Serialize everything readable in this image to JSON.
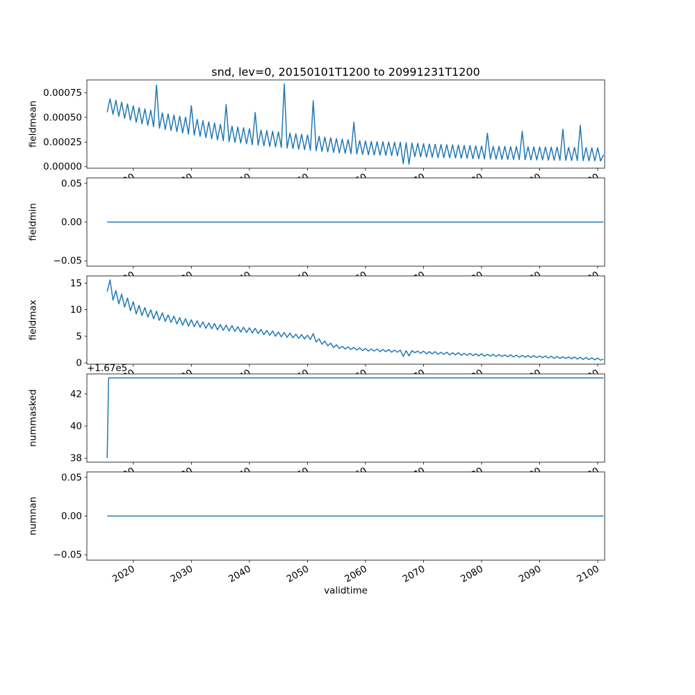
{
  "figure": {
    "title": "snd, lev=0, 20150101T1200 to 20991231T1200",
    "xlabel": "validtime",
    "line_color": "#1f77b4",
    "background": "#ffffff"
  },
  "x_axis": {
    "label": "validtime",
    "min": 2012,
    "max": 2101.2,
    "ticks": [
      2020,
      2030,
      2040,
      2050,
      2060,
      2070,
      2080,
      2090,
      2100
    ],
    "tick_labels": [
      "2020",
      "2030",
      "2040",
      "2050",
      "2060",
      "2070",
      "2080",
      "2090",
      "2100"
    ]
  },
  "chart_data": [
    {
      "type": "line",
      "name": "fieldmean",
      "ylabel": "fieldmean",
      "ylim": [
        -1.6e-05,
        0.000881
      ],
      "yticks": [
        0,
        0.00025,
        0.0005,
        0.00075
      ],
      "ytick_labels": [
        "0.00000",
        "0.00025",
        "0.00050",
        "0.00075"
      ],
      "x_start": 2015.5,
      "x_step": 0.5,
      "value_scale": 0.0001,
      "values": [
        5.52,
        6.9,
        5.31,
        6.73,
        5.11,
        6.55,
        4.91,
        6.37,
        4.71,
        6.19,
        4.51,
        6.0,
        4.35,
        5.87,
        4.2,
        5.73,
        4.05,
        8.3,
        3.9,
        5.46,
        3.79,
        5.38,
        3.67,
        5.25,
        3.55,
        5.14,
        3.42,
        5.03,
        3.3,
        6.2,
        3.2,
        4.81,
        3.07,
        4.68,
        2.95,
        4.55,
        2.84,
        4.43,
        2.72,
        4.29,
        2.63,
        6.3,
        2.54,
        4.11,
        2.46,
        4.03,
        2.39,
        3.95,
        2.31,
        3.86,
        2.23,
        5.5,
        2.17,
        3.72,
        2.11,
        3.66,
        2.05,
        3.6,
        2.0,
        3.54,
        1.94,
        8.4,
        1.88,
        3.42,
        1.83,
        3.35,
        1.77,
        3.29,
        1.72,
        3.22,
        1.66,
        6.7,
        1.61,
        3.08,
        1.55,
        3.01,
        1.5,
        2.94,
        1.44,
        2.86,
        1.39,
        2.79,
        1.35,
        2.75,
        1.31,
        4.5,
        1.27,
        2.65,
        1.24,
        2.61,
        1.2,
        2.56,
        1.18,
        2.54,
        1.16,
        2.53,
        1.14,
        2.51,
        1.12,
        2.49,
        1.1,
        2.48,
        0.3,
        2.44,
        0.25,
        2.4,
        1.02,
        2.37,
        0.99,
        2.33,
        0.96,
        2.3,
        0.94,
        2.27,
        0.92,
        2.25,
        0.91,
        2.23,
        0.89,
        2.21,
        0.87,
        2.19,
        0.85,
        2.16,
        0.84,
        2.14,
        0.81,
        2.12,
        0.8,
        2.09,
        0.78,
        3.4,
        0.77,
        2.06,
        0.75,
        2.06,
        0.74,
        2.05,
        0.73,
        2.04,
        0.72,
        2.04,
        0.71,
        3.6,
        0.7,
        2.02,
        0.69,
        2.01,
        0.68,
        2.0,
        0.67,
        2.0,
        0.66,
        1.99,
        0.65,
        1.98,
        0.64,
        3.8,
        0.63,
        1.96,
        0.62,
        1.95,
        0.61,
        4.2,
        0.6,
        1.93,
        0.59,
        1.92,
        0.58,
        1.91,
        0.57,
        1.2
      ]
    },
    {
      "type": "line",
      "name": "fieldmin",
      "ylabel": "fieldmin",
      "ylim": [
        -0.057,
        0.057
      ],
      "yticks": [
        -0.05,
        0,
        0.05
      ],
      "ytick_labels": [
        "−0.05",
        "0.00",
        "0.05"
      ],
      "x": [
        2015.5,
        2101.0
      ],
      "values": [
        0,
        0
      ]
    },
    {
      "type": "line",
      "name": "fieldmax",
      "ylabel": "fieldmax",
      "ylim": [
        -0.255,
        16.355
      ],
      "yticks": [
        0,
        5,
        10,
        15
      ],
      "ytick_labels": [
        "0",
        "5",
        "10",
        "15"
      ],
      "x_start": 2015.5,
      "x_step": 0.5,
      "value_scale": 1,
      "values": [
        13.4,
        15.6,
        11.8,
        13.6,
        11.1,
        12.9,
        10.5,
        12.2,
        9.8,
        11.5,
        9.2,
        10.8,
        8.9,
        10.4,
        8.6,
        10.0,
        8.3,
        9.7,
        8.0,
        9.4,
        7.8,
        9.0,
        7.6,
        8.8,
        7.3,
        8.5,
        7.1,
        8.3,
        6.9,
        8.1,
        6.8,
        7.9,
        6.7,
        7.7,
        6.5,
        7.5,
        6.4,
        7.4,
        6.2,
        7.2,
        6.1,
        7.1,
        6.0,
        7.0,
        5.9,
        6.8,
        5.8,
        6.7,
        5.7,
        6.6,
        5.6,
        6.5,
        5.5,
        6.3,
        5.3,
        6.1,
        5.2,
        6.0,
        5.0,
        5.8,
        4.9,
        5.7,
        4.8,
        5.6,
        4.7,
        5.4,
        4.6,
        5.3,
        4.5,
        5.2,
        4.4,
        5.5,
        3.9,
        4.5,
        3.5,
        4.1,
        3.2,
        3.7,
        2.9,
        3.4,
        2.7,
        3.1,
        2.6,
        3.0,
        2.5,
        2.9,
        2.4,
        2.8,
        2.3,
        2.7,
        2.2,
        2.6,
        2.2,
        2.6,
        2.1,
        2.5,
        2.1,
        2.5,
        2.0,
        2.4,
        2.0,
        2.4,
        1.2,
        2.3,
        1.3,
        2.3,
        1.9,
        2.2,
        1.8,
        2.2,
        1.7,
        2.1,
        1.7,
        2.1,
        1.6,
        2.0,
        1.6,
        2.0,
        1.5,
        1.9,
        1.5,
        1.9,
        1.4,
        1.8,
        1.4,
        1.8,
        1.35,
        1.7,
        1.3,
        1.7,
        1.25,
        1.6,
        1.25,
        1.6,
        1.2,
        1.55,
        1.2,
        1.5,
        1.15,
        1.5,
        1.1,
        1.45,
        1.05,
        1.4,
        1.05,
        1.35,
        1.0,
        1.35,
        1.0,
        1.3,
        0.95,
        1.3,
        0.9,
        1.25,
        0.85,
        1.2,
        0.85,
        1.15,
        0.8,
        1.1,
        0.75,
        1.1,
        0.7,
        1.05,
        0.65,
        1.0,
        0.6,
        0.95,
        0.55,
        0.9,
        0.5,
        0.7
      ]
    },
    {
      "type": "line",
      "name": "nummasked",
      "ylabel": "nummasked",
      "offset_text": "+1.67e5",
      "ylim": [
        167037.75,
        167043.25
      ],
      "yticks": [
        167038,
        167040,
        167042
      ],
      "ytick_labels": [
        "38",
        "40",
        "42"
      ],
      "x": [
        2015.5,
        2015.75,
        2101.0
      ],
      "values": [
        167038,
        167043,
        167043
      ]
    },
    {
      "type": "line",
      "name": "numnan",
      "ylabel": "numnan",
      "ylim": [
        -0.057,
        0.057
      ],
      "yticks": [
        -0.05,
        0,
        0.05
      ],
      "ytick_labels": [
        "−0.05",
        "0.00",
        "0.05"
      ],
      "x": [
        2015.5,
        2101.0
      ],
      "values": [
        0,
        0
      ]
    }
  ]
}
